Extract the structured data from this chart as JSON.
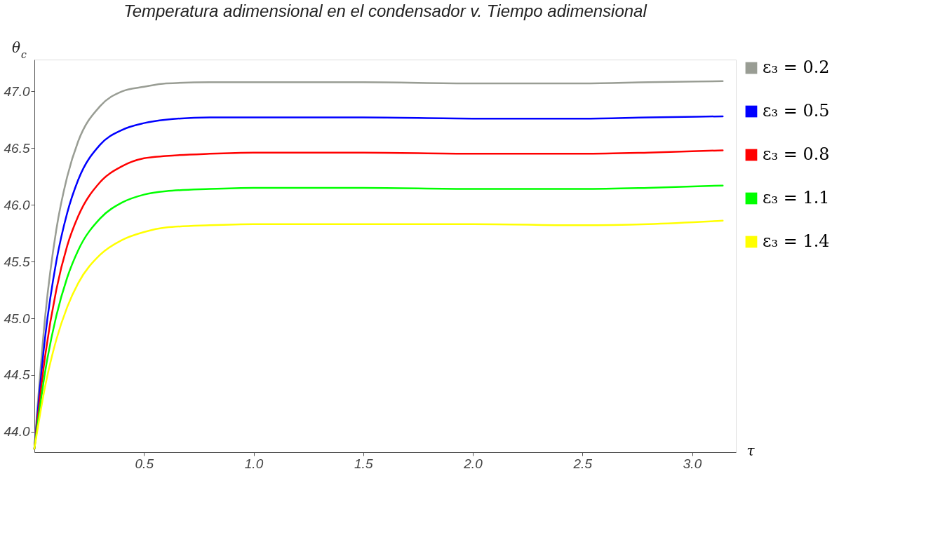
{
  "chart_data": {
    "type": "line",
    "title": "Temperatura adimensional en el condensador v. Tiempo adimensional",
    "xlabel": "τ",
    "ylabel": "θ$_{c}$",
    "x": [
      0,
      0.05,
      0.1,
      0.15,
      0.2,
      0.3,
      0.4,
      0.5,
      0.6,
      0.8,
      1.0,
      1.5,
      2.0,
      2.5,
      2.8,
      3.14
    ],
    "series": [
      {
        "name": "ε₃ = 0.2",
        "color": "#999d94",
        "values": [
          43.85,
          45.03,
          45.78,
          46.25,
          46.56,
          46.87,
          47.0,
          47.04,
          47.07,
          47.08,
          47.08,
          47.08,
          47.07,
          47.07,
          47.08,
          47.09
        ]
      },
      {
        "name": "ε₃ = 0.5",
        "color": "#0000ff",
        "values": [
          43.85,
          44.85,
          45.5,
          45.93,
          46.22,
          46.53,
          46.66,
          46.72,
          46.75,
          46.77,
          46.77,
          46.77,
          46.76,
          46.76,
          46.77,
          46.78
        ]
      },
      {
        "name": "ε₃ = 0.8",
        "color": "#ff0000",
        "values": [
          43.85,
          44.68,
          45.25,
          45.64,
          45.9,
          46.2,
          46.34,
          46.41,
          46.43,
          46.45,
          46.46,
          46.46,
          46.45,
          46.45,
          46.46,
          46.48
        ]
      },
      {
        "name": "ε₃ = 1.1",
        "color": "#00ff00",
        "values": [
          43.85,
          44.54,
          45.02,
          45.36,
          45.6,
          45.88,
          46.02,
          46.09,
          46.12,
          46.14,
          46.15,
          46.15,
          46.14,
          46.14,
          46.15,
          46.17
        ]
      },
      {
        "name": "ε₃ = 1.4",
        "color": "#ffff00",
        "values": [
          43.85,
          44.41,
          44.81,
          45.1,
          45.31,
          45.56,
          45.69,
          45.76,
          45.8,
          45.82,
          45.83,
          45.83,
          45.83,
          45.82,
          45.83,
          45.86
        ]
      }
    ],
    "xlim": [
      0,
      3.2
    ],
    "xticks": [
      0.5,
      {
        "value": 1,
        "label": "1.0"
      },
      1.5,
      {
        "value": 2,
        "label": "2.0"
      },
      2.5,
      {
        "value": 3,
        "label": "3.0"
      }
    ],
    "ylim": [
      43.82,
      47.28
    ],
    "yticks": [
      {
        "value": 44,
        "label": "44.0"
      },
      44.5,
      {
        "value": 45,
        "label": "45.0"
      },
      45.5,
      {
        "value": 46,
        "label": "46.0"
      },
      46.5,
      {
        "value": 47,
        "label": "47.0"
      }
    ],
    "grid": false,
    "legend": "right",
    "marker": "none",
    "line_style": "solid"
  }
}
